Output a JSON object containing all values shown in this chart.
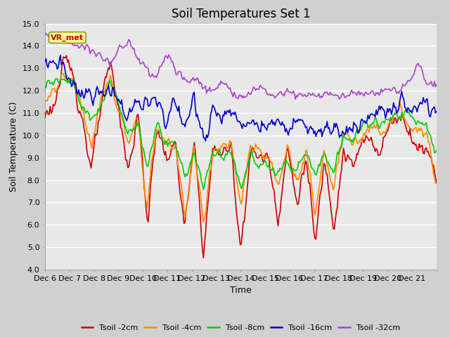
{
  "title": "Soil Temperatures Set 1",
  "xlabel": "Time",
  "ylabel": "Soil Temperature (C)",
  "ylim": [
    4.0,
    15.0
  ],
  "yticks": [
    4.0,
    5.0,
    6.0,
    7.0,
    8.0,
    9.0,
    10.0,
    11.0,
    12.0,
    13.0,
    14.0,
    15.0
  ],
  "colors": {
    "t2": "#cc0000",
    "t4": "#ff8800",
    "t8": "#00cc00",
    "t16": "#0000cc",
    "t32": "#aa44cc"
  },
  "legend_labels": [
    "Tsoil -2cm",
    "Tsoil -4cm",
    "Tsoil -8cm",
    "Tsoil -16cm",
    "Tsoil -32cm"
  ],
  "vr_met_label": "VR_met",
  "vr_met_color": "#cc0000",
  "vr_met_bg": "#ffff99",
  "vr_met_border": "#888800",
  "fig_bg": "#d0d0d0",
  "plot_bg": "#e8e8e8",
  "grid_color": "#ffffff",
  "tick_labels": [
    "Dec 6",
    "Dec 7",
    "Dec 8",
    "Dec 9",
    "Dec 10",
    "Dec 11",
    "Dec 12",
    "Dec 13",
    "Dec 14",
    "Dec 15",
    "Dec 16",
    "Dec 17",
    "Dec 18",
    "Dec 19",
    "Dec 20",
    "Dec 21"
  ],
  "n_points": 384,
  "n_days": 16,
  "linewidth": 1.2,
  "title_fontsize": 12,
  "label_fontsize": 9,
  "tick_fontsize": 8,
  "legend_fontsize": 8
}
